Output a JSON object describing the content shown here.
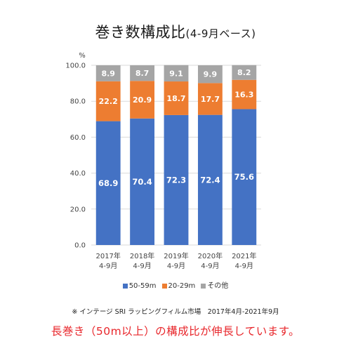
{
  "chart_data": {
    "type": "bar",
    "stacked": true,
    "title": "巻き数構成比",
    "subtitle": "(4-9月ベース)",
    "ylabel": "%",
    "ylim": [
      0,
      100
    ],
    "yticks": [
      "0.0",
      "20.0",
      "40.0",
      "60.0",
      "80.0",
      "100.0"
    ],
    "grid": true,
    "legend_position": "bottom",
    "categories": [
      {
        "year": "2017年",
        "period": "4-9月"
      },
      {
        "year": "2018年",
        "period": "4-9月"
      },
      {
        "year": "2019年",
        "period": "4-9月"
      },
      {
        "year": "2020年",
        "period": "4-9月"
      },
      {
        "year": "2021年",
        "period": "4-9月"
      }
    ],
    "series": [
      {
        "name": "50-59m",
        "color": "#4472c4",
        "values": [
          68.9,
          70.4,
          72.3,
          72.4,
          75.6
        ]
      },
      {
        "name": "20-29m",
        "color": "#ed7d31",
        "values": [
          22.2,
          20.9,
          18.7,
          17.7,
          16.3
        ]
      },
      {
        "name": "その他",
        "color": "#a5a5a5",
        "values": [
          8.9,
          8.7,
          9.1,
          9.9,
          8.2
        ]
      }
    ]
  },
  "source_note": "※ インテージ SRI ラッピングフィルム市場　2017年4月-2021年9月",
  "caption": "長巻き（50m以上）の構成比が伸長しています。"
}
